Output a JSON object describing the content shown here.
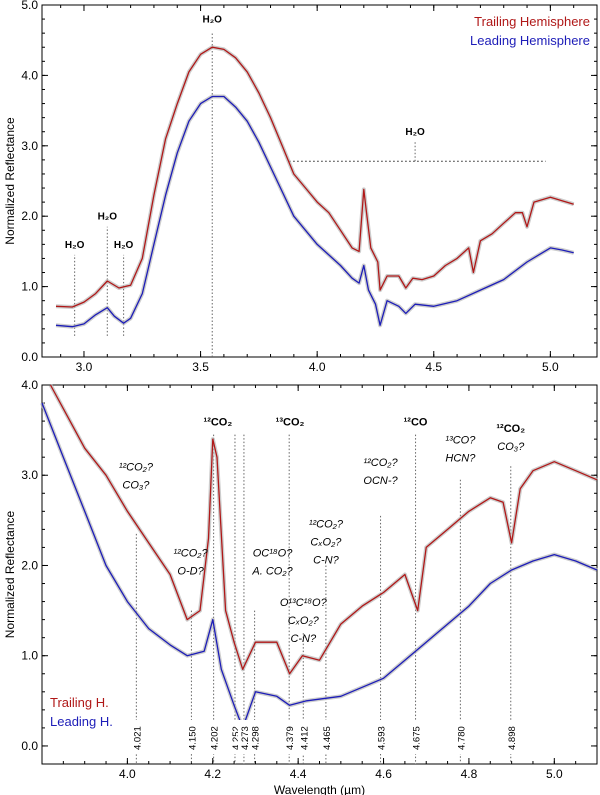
{
  "colors": {
    "trailing": "#b01818",
    "leading": "#1d1db8",
    "guide": "#666666",
    "error": "#b8b8b8"
  },
  "chart_data": [
    {
      "type": "line",
      "xlabel": "",
      "ylabel": "Normalized Reflectance",
      "xlim": [
        2.82,
        5.2
      ],
      "ylim": [
        0,
        5
      ],
      "xticks": [
        "3.0",
        "3.5",
        "4.0",
        "4.5",
        "5.0"
      ],
      "yticks": [
        "0.0",
        "1.0",
        "2.0",
        "3.0",
        "4.0",
        "5.0"
      ],
      "grid": false,
      "legend_position": "top-right",
      "series": [
        {
          "name": "Trailing Hemisphere",
          "color_key": "trailing",
          "points": [
            [
              2.88,
              0.72
            ],
            [
              2.95,
              0.71
            ],
            [
              3.0,
              0.78
            ],
            [
              3.05,
              0.9
            ],
            [
              3.1,
              1.08
            ],
            [
              3.15,
              0.98
            ],
            [
              3.2,
              1.02
            ],
            [
              3.25,
              1.4
            ],
            [
              3.3,
              2.3
            ],
            [
              3.35,
              3.1
            ],
            [
              3.4,
              3.6
            ],
            [
              3.45,
              4.05
            ],
            [
              3.5,
              4.3
            ],
            [
              3.55,
              4.4
            ],
            [
              3.6,
              4.37
            ],
            [
              3.65,
              4.25
            ],
            [
              3.7,
              4.05
            ],
            [
              3.75,
              3.75
            ],
            [
              3.8,
              3.4
            ],
            [
              3.85,
              3.0
            ],
            [
              3.9,
              2.6
            ],
            [
              3.95,
              2.4
            ],
            [
              4.0,
              2.2
            ],
            [
              4.05,
              2.05
            ],
            [
              4.1,
              1.8
            ],
            [
              4.15,
              1.55
            ],
            [
              4.18,
              1.5
            ],
            [
              4.2,
              2.38
            ],
            [
              4.21,
              2.1
            ],
            [
              4.23,
              1.55
            ],
            [
              4.26,
              1.35
            ],
            [
              4.27,
              0.95
            ],
            [
              4.3,
              1.15
            ],
            [
              4.35,
              1.15
            ],
            [
              4.38,
              0.98
            ],
            [
              4.41,
              1.12
            ],
            [
              4.45,
              1.1
            ],
            [
              4.5,
              1.15
            ],
            [
              4.55,
              1.3
            ],
            [
              4.6,
              1.4
            ],
            [
              4.65,
              1.55
            ],
            [
              4.67,
              1.2
            ],
            [
              4.7,
              1.65
            ],
            [
              4.75,
              1.75
            ],
            [
              4.8,
              1.9
            ],
            [
              4.85,
              2.05
            ],
            [
              4.88,
              2.05
            ],
            [
              4.9,
              1.85
            ],
            [
              4.93,
              2.2
            ],
            [
              5.0,
              2.27
            ],
            [
              5.05,
              2.22
            ],
            [
              5.1,
              2.17
            ]
          ]
        },
        {
          "name": "Leading Hemisphere",
          "color_key": "leading",
          "points": [
            [
              2.88,
              0.45
            ],
            [
              2.95,
              0.43
            ],
            [
              3.0,
              0.47
            ],
            [
              3.05,
              0.6
            ],
            [
              3.1,
              0.7
            ],
            [
              3.13,
              0.58
            ],
            [
              3.17,
              0.48
            ],
            [
              3.2,
              0.55
            ],
            [
              3.25,
              0.9
            ],
            [
              3.3,
              1.6
            ],
            [
              3.35,
              2.3
            ],
            [
              3.4,
              2.9
            ],
            [
              3.45,
              3.35
            ],
            [
              3.5,
              3.6
            ],
            [
              3.55,
              3.7
            ],
            [
              3.6,
              3.7
            ],
            [
              3.65,
              3.55
            ],
            [
              3.7,
              3.35
            ],
            [
              3.75,
              3.05
            ],
            [
              3.8,
              2.7
            ],
            [
              3.85,
              2.35
            ],
            [
              3.9,
              2.0
            ],
            [
              3.95,
              1.8
            ],
            [
              4.0,
              1.6
            ],
            [
              4.05,
              1.45
            ],
            [
              4.1,
              1.3
            ],
            [
              4.15,
              1.12
            ],
            [
              4.18,
              1.05
            ],
            [
              4.2,
              1.3
            ],
            [
              4.22,
              0.95
            ],
            [
              4.25,
              0.75
            ],
            [
              4.27,
              0.45
            ],
            [
              4.3,
              0.8
            ],
            [
              4.35,
              0.72
            ],
            [
              4.38,
              0.62
            ],
            [
              4.42,
              0.75
            ],
            [
              4.5,
              0.72
            ],
            [
              4.6,
              0.8
            ],
            [
              4.7,
              0.95
            ],
            [
              4.8,
              1.1
            ],
            [
              4.9,
              1.35
            ],
            [
              5.0,
              1.55
            ],
            [
              5.05,
              1.52
            ],
            [
              5.1,
              1.48
            ]
          ]
        }
      ],
      "annotations": [
        {
          "text": "H₂O",
          "x": 2.96,
          "y": 1.55,
          "line_x": 2.96,
          "line_from": 0.3,
          "line_to": 1.45
        },
        {
          "text": "H₂O",
          "x": 3.1,
          "y": 1.95,
          "line_x": 3.1,
          "line_from": 0.3,
          "line_to": 1.85
        },
        {
          "text": "H₂O",
          "x": 3.17,
          "y": 1.55,
          "line_x": 3.17,
          "line_from": 0.3,
          "line_to": 1.45
        },
        {
          "text": "H₂O",
          "x": 3.55,
          "y": 4.75,
          "line_x": 3.55,
          "line_from": 0.0,
          "line_to": 4.62
        },
        {
          "text": "H₂O",
          "x": 4.42,
          "y": 3.15,
          "line_x": 4.42,
          "line_from": 2.78,
          "line_to": 3.05
        }
      ],
      "range_line": {
        "x_from": 3.88,
        "x_to": 4.98,
        "y": 2.78
      }
    },
    {
      "type": "line",
      "xlabel": "Wavelength (µm)",
      "ylabel": "Normalized Reflectance",
      "xlim": [
        3.8,
        5.1
      ],
      "ylim": [
        -0.2,
        4.0
      ],
      "xticks": [
        "4.0",
        "4.2",
        "4.4",
        "4.6",
        "4.8",
        "5.0"
      ],
      "yticks": [
        "0.0",
        "1.0",
        "2.0",
        "3.0",
        "4.0"
      ],
      "grid": false,
      "legend_position": "bottom-left",
      "series": [
        {
          "name": "Trailing H.",
          "color_key": "trailing",
          "points": [
            [
              3.82,
              4.0
            ],
            [
              3.86,
              3.65
            ],
            [
              3.9,
              3.3
            ],
            [
              3.95,
              3.0
            ],
            [
              4.0,
              2.6
            ],
            [
              4.05,
              2.25
            ],
            [
              4.1,
              1.9
            ],
            [
              4.14,
              1.4
            ],
            [
              4.17,
              1.5
            ],
            [
              4.19,
              2.3
            ],
            [
              4.2,
              3.4
            ],
            [
              4.21,
              3.2
            ],
            [
              4.23,
              1.5
            ],
            [
              4.25,
              1.15
            ],
            [
              4.27,
              0.85
            ],
            [
              4.3,
              1.15
            ],
            [
              4.35,
              1.15
            ],
            [
              4.38,
              0.8
            ],
            [
              4.41,
              1.0
            ],
            [
              4.45,
              0.95
            ],
            [
              4.5,
              1.35
            ],
            [
              4.55,
              1.55
            ],
            [
              4.6,
              1.7
            ],
            [
              4.65,
              1.9
            ],
            [
              4.68,
              1.5
            ],
            [
              4.7,
              2.2
            ],
            [
              4.75,
              2.4
            ],
            [
              4.8,
              2.6
            ],
            [
              4.85,
              2.75
            ],
            [
              4.88,
              2.7
            ],
            [
              4.9,
              2.25
            ],
            [
              4.92,
              2.85
            ],
            [
              4.95,
              3.05
            ],
            [
              5.0,
              3.15
            ],
            [
              5.05,
              3.05
            ],
            [
              5.1,
              2.95
            ]
          ]
        },
        {
          "name": "Leading H.",
          "color_key": "leading",
          "points": [
            [
              3.8,
              3.8
            ],
            [
              3.85,
              3.2
            ],
            [
              3.9,
              2.6
            ],
            [
              3.95,
              2.0
            ],
            [
              4.0,
              1.6
            ],
            [
              4.05,
              1.3
            ],
            [
              4.1,
              1.12
            ],
            [
              4.14,
              1.0
            ],
            [
              4.18,
              1.05
            ],
            [
              4.2,
              1.4
            ],
            [
              4.22,
              0.85
            ],
            [
              4.25,
              0.45
            ],
            [
              4.27,
              0.2
            ],
            [
              4.3,
              0.6
            ],
            [
              4.35,
              0.55
            ],
            [
              4.38,
              0.45
            ],
            [
              4.42,
              0.5
            ],
            [
              4.5,
              0.55
            ],
            [
              4.6,
              0.75
            ],
            [
              4.65,
              0.95
            ],
            [
              4.7,
              1.15
            ],
            [
              4.75,
              1.35
            ],
            [
              4.8,
              1.55
            ],
            [
              4.85,
              1.8
            ],
            [
              4.9,
              1.95
            ],
            [
              4.95,
              2.05
            ],
            [
              5.0,
              2.12
            ],
            [
              5.05,
              2.05
            ],
            [
              5.1,
              1.95
            ]
          ]
        }
      ],
      "features": [
        {
          "x": 4.021,
          "label": "4.021"
        },
        {
          "x": 4.15,
          "label": "4.150"
        },
        {
          "x": 4.202,
          "label": "4.202"
        },
        {
          "x": 4.252,
          "label": "4.252"
        },
        {
          "x": 4.273,
          "label": "4.273"
        },
        {
          "x": 4.298,
          "label": "4.298"
        },
        {
          "x": 4.379,
          "label": "4.379"
        },
        {
          "x": 4.412,
          "label": "4.412"
        },
        {
          "x": 4.465,
          "label": "4.465"
        },
        {
          "x": 4.593,
          "label": "4.593"
        },
        {
          "x": 4.675,
          "label": "4.675"
        },
        {
          "x": 4.78,
          "label": "4.780"
        },
        {
          "x": 4.898,
          "label": "4.898"
        }
      ],
      "feature_lines": [
        {
          "x": 4.021,
          "top": 2.35
        },
        {
          "x": 4.15,
          "top": 1.5
        },
        {
          "x": 4.202,
          "top": 3.45
        },
        {
          "x": 4.252,
          "top": 3.45
        },
        {
          "x": 4.273,
          "top": 3.45
        },
        {
          "x": 4.298,
          "top": 1.5
        },
        {
          "x": 4.379,
          "top": 3.45
        },
        {
          "x": 4.412,
          "top": 1.25
        },
        {
          "x": 4.465,
          "top": 2.0
        },
        {
          "x": 4.593,
          "top": 2.55
        },
        {
          "x": 4.675,
          "top": 3.45
        },
        {
          "x": 4.78,
          "top": 2.95
        },
        {
          "x": 4.898,
          "top": 3.1
        }
      ],
      "annotations": [
        {
          "lines": [
            [
              "¹²CO₂?",
              "italic"
            ],
            [
              "CO₃?",
              "italic"
            ]
          ],
          "x": 4.02,
          "y": 3.05
        },
        {
          "lines": [
            [
              "¹²CO₂?",
              "italic"
            ],
            [
              "O-D?",
              "italic"
            ]
          ],
          "x": 4.148,
          "y": 2.1
        },
        {
          "lines": [
            [
              "¹²CO₂",
              "bold"
            ]
          ],
          "x": 4.212,
          "y": 3.55
        },
        {
          "lines": [
            [
              "OC¹⁸O?",
              "italic"
            ],
            [
              "A. CO₂?",
              "italic"
            ]
          ],
          "x": 4.34,
          "y": 2.1
        },
        {
          "lines": [
            [
              "¹³CO₂",
              "bold"
            ]
          ],
          "x": 4.381,
          "y": 3.55
        },
        {
          "lines": [
            [
              "O¹³C¹⁸O?",
              "italic"
            ],
            [
              "CₓO₂?",
              "italic"
            ],
            [
              "C-N?",
              "italic"
            ]
          ],
          "x": 4.412,
          "y": 1.55
        },
        {
          "lines": [
            [
              "¹²CO₂?",
              "italic"
            ],
            [
              "CₓO₂?",
              "italic"
            ],
            [
              "C-N?",
              "italic"
            ]
          ],
          "x": 4.465,
          "y": 2.42
        },
        {
          "lines": [
            [
              "¹²CO₂?",
              "italic"
            ],
            [
              "OCN-?",
              "italic"
            ]
          ],
          "x": 4.593,
          "y": 3.1
        },
        {
          "lines": [
            [
              "¹²CO",
              "bold"
            ]
          ],
          "x": 4.675,
          "y": 3.55
        },
        {
          "lines": [
            [
              "¹³CO?",
              "italic"
            ],
            [
              "HCN?",
              "italic"
            ]
          ],
          "x": 4.78,
          "y": 3.35
        },
        {
          "lines": [
            [
              "¹²CO₂",
              "bold"
            ],
            [
              "CO₃?",
              "italic"
            ]
          ],
          "x": 4.898,
          "y": 3.48
        }
      ]
    }
  ]
}
